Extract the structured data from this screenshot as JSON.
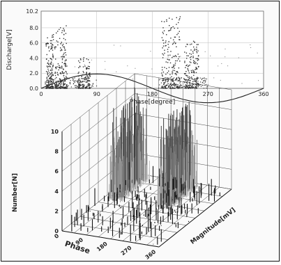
{
  "chart_data": [
    {
      "type": "scatter",
      "title": "",
      "xlabel": "Phase[degree]",
      "ylabel": "Discharge[V]",
      "xlim": [
        0,
        360
      ],
      "ylim": [
        0,
        10.2
      ],
      "x_ticks": [
        "0",
        "90",
        "180",
        "270",
        "360"
      ],
      "y_ticks": [
        "0.0",
        "2.0",
        "4.0",
        "6.0",
        "8.0",
        "10.2"
      ],
      "grid": true,
      "reference_curve": {
        "name": "",
        "type": "sine",
        "amplitude": 1.9,
        "period_deg": 360
      },
      "clusters": [
        {
          "phase_range": [
            8,
            20
          ],
          "max_discharge": 7.2
        },
        {
          "phase_range": [
            22,
            42
          ],
          "max_discharge": 8.3
        },
        {
          "phase_range": [
            60,
            80
          ],
          "max_discharge": 4.2
        },
        {
          "phase_range": [
            195,
            225
          ],
          "max_discharge": 9.6
        },
        {
          "phase_range": [
            232,
            255
          ],
          "max_discharge": 6.4
        }
      ]
    },
    {
      "type": "bar3d",
      "title": "",
      "xlabel": "Phase",
      "ylabel": "Magnitude[mV]",
      "zlabel": "Number[N]",
      "x_ticks": [
        "0",
        "90",
        "180",
        "270",
        "360"
      ],
      "z_ticks": [
        "0",
        "2",
        "4",
        "6",
        "8",
        "10"
      ],
      "peaks": [
        {
          "phase_center": 45,
          "max_number": 9.8
        },
        {
          "phase_center": 225,
          "max_number": 9.5
        }
      ]
    }
  ]
}
